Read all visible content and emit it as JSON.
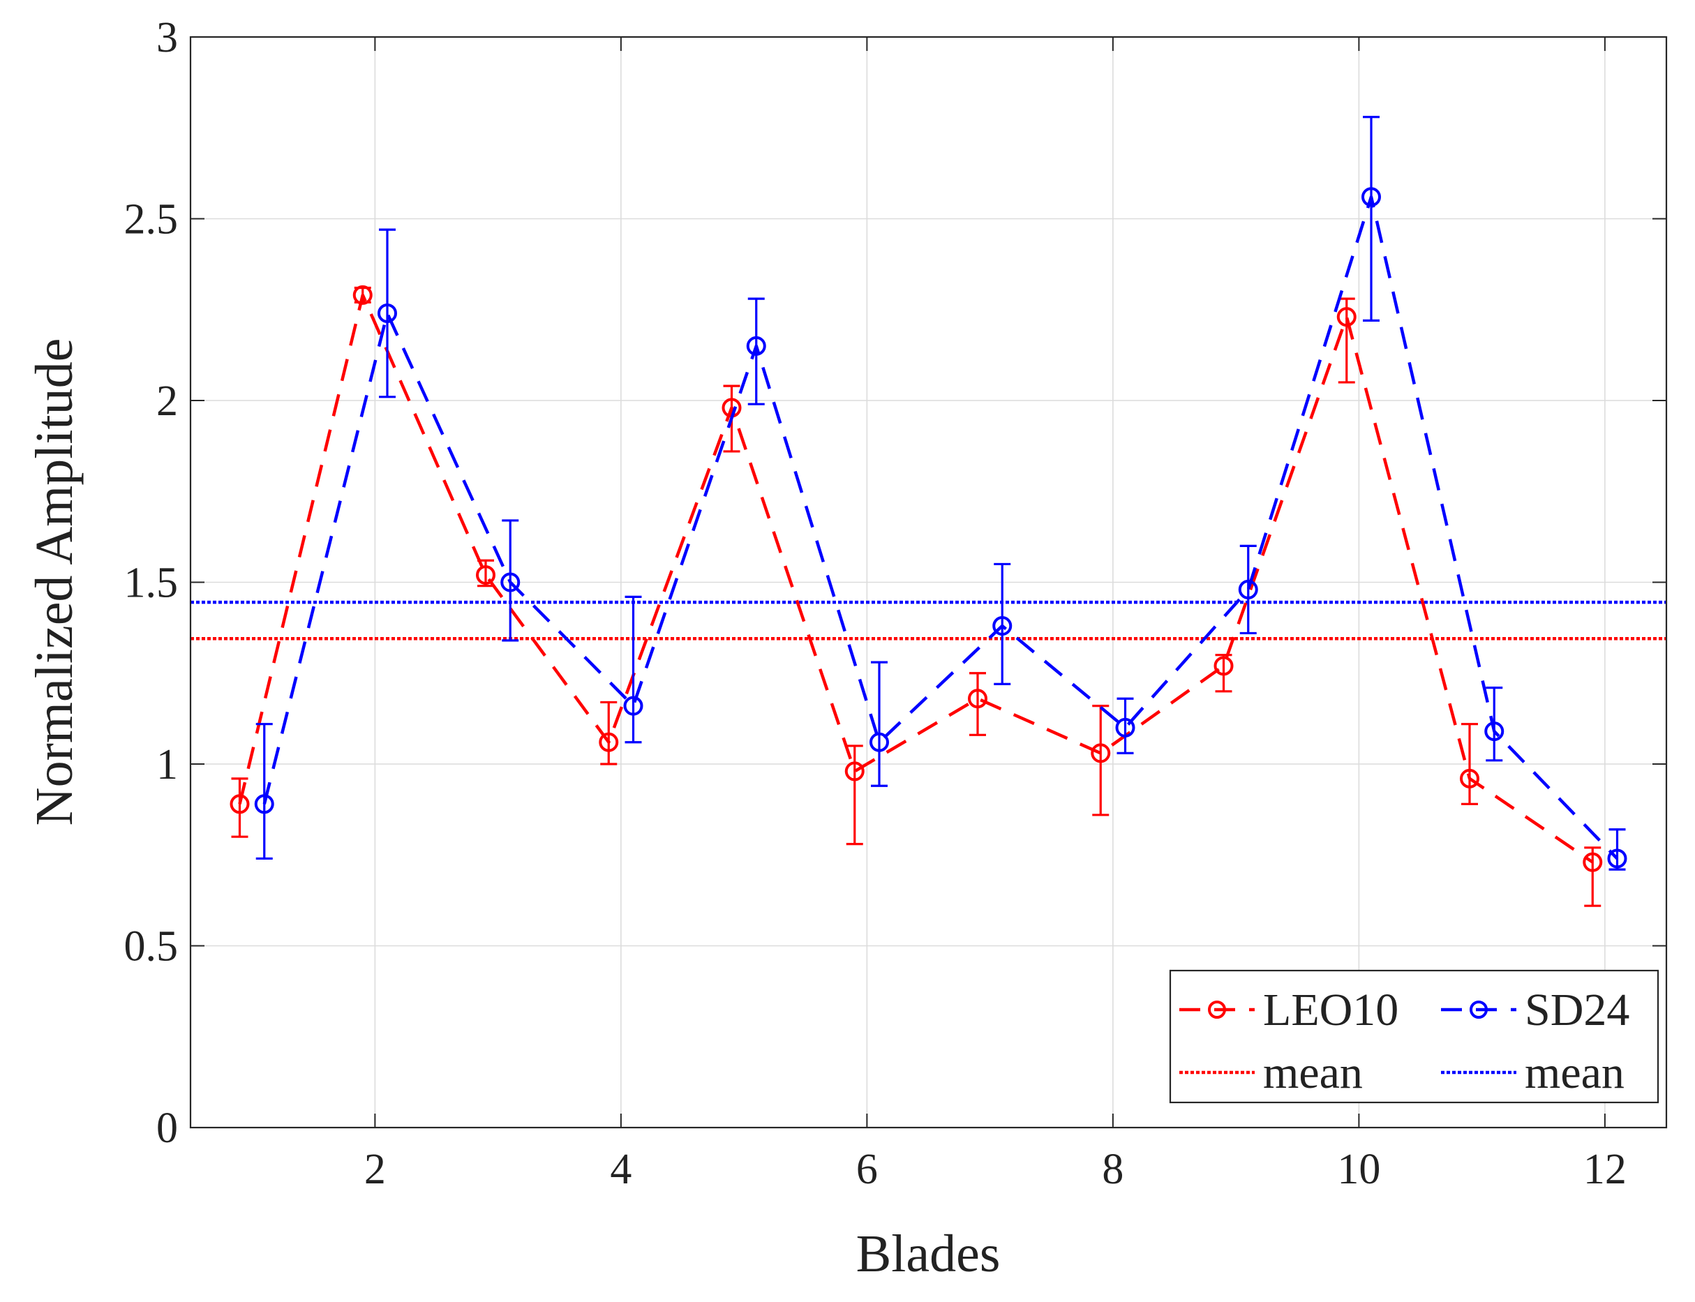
{
  "chart_data": {
    "type": "line",
    "title": "",
    "xlabel": "Blades",
    "ylabel": "Normalized Amplitude",
    "xlim": [
      0.5,
      12.5
    ],
    "ylim": [
      0,
      3
    ],
    "xticks": [
      2,
      4,
      6,
      8,
      10,
      12
    ],
    "yticks": [
      0,
      0.5,
      1,
      1.5,
      2,
      2.5,
      3
    ],
    "xtick_labels": [
      "2",
      "4",
      "6",
      "8",
      "10",
      "12"
    ],
    "ytick_labels": [
      "0",
      "0.5",
      "1",
      "1.5",
      "2",
      "2.5",
      "3"
    ],
    "grid": true,
    "legend_position": "bottom-right",
    "legend_columns": 2,
    "series": [
      {
        "name": "LEO10",
        "color": "#ff0000",
        "x": [
          0.9,
          1.9,
          2.9,
          3.9,
          4.9,
          5.9,
          6.9,
          7.9,
          8.9,
          9.9,
          10.9,
          11.9
        ],
        "y": [
          0.89,
          2.29,
          1.52,
          1.06,
          1.98,
          0.98,
          1.18,
          1.03,
          1.27,
          2.23,
          0.96,
          0.73
        ],
        "err_low": [
          0.8,
          2.27,
          1.49,
          1.0,
          1.86,
          0.78,
          1.08,
          0.86,
          1.2,
          2.05,
          0.89,
          0.61
        ],
        "err_high": [
          0.96,
          2.31,
          1.56,
          1.17,
          2.04,
          1.05,
          1.25,
          1.16,
          1.3,
          2.28,
          1.11,
          0.77
        ]
      },
      {
        "name": "SD24",
        "color": "#0000ff",
        "x": [
          1.1,
          2.1,
          3.1,
          4.1,
          5.1,
          6.1,
          7.1,
          8.1,
          9.1,
          10.1,
          11.1,
          12.1
        ],
        "y": [
          0.89,
          2.24,
          1.5,
          1.16,
          2.15,
          1.06,
          1.38,
          1.1,
          1.48,
          2.56,
          1.09,
          0.74
        ],
        "err_low": [
          0.74,
          2.01,
          1.34,
          1.06,
          1.99,
          0.94,
          1.22,
          1.03,
          1.36,
          2.22,
          1.01,
          0.71
        ],
        "err_high": [
          1.11,
          2.47,
          1.67,
          1.46,
          2.28,
          1.28,
          1.55,
          1.18,
          1.6,
          2.78,
          1.21,
          0.82
        ]
      }
    ],
    "mean_lines": [
      {
        "name": "mean",
        "series": "LEO10",
        "value": 1.345,
        "color": "#ff0000"
      },
      {
        "name": "mean",
        "series": "SD24",
        "value": 1.445,
        "color": "#0000ff"
      }
    ],
    "legend": [
      {
        "label": "LEO10",
        "kind": "series",
        "color": "#ff0000"
      },
      {
        "label": "SD24",
        "kind": "series",
        "color": "#0000ff"
      },
      {
        "label": "mean",
        "kind": "mean",
        "color": "#ff0000"
      },
      {
        "label": "mean",
        "kind": "mean",
        "color": "#0000ff"
      }
    ]
  }
}
